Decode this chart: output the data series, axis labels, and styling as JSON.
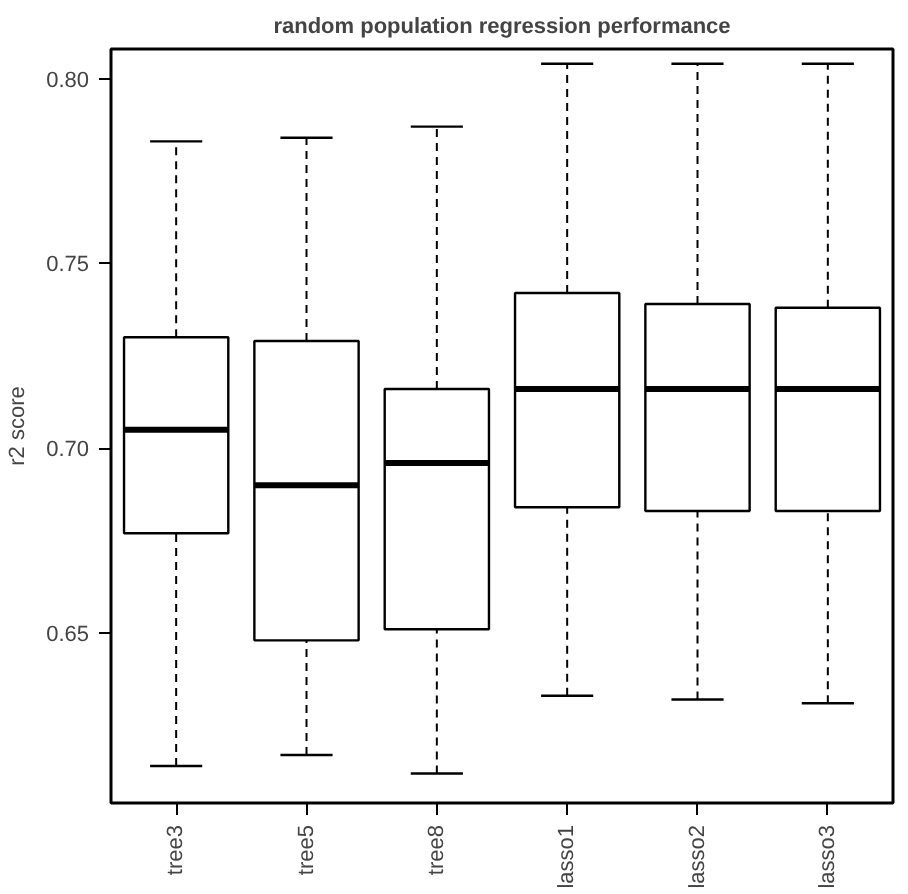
{
  "chart_data": {
    "type": "box",
    "title": "random population regression performance",
    "ylabel": "r2 score",
    "categories": [
      "tree3",
      "tree5",
      "tree8",
      "lasso1",
      "lasso2",
      "lasso3"
    ],
    "boxes": [
      {
        "low": 0.614,
        "q1": 0.677,
        "median": 0.705,
        "q3": 0.73,
        "high": 0.783
      },
      {
        "low": 0.617,
        "q1": 0.648,
        "median": 0.69,
        "q3": 0.729,
        "high": 0.784
      },
      {
        "low": 0.612,
        "q1": 0.651,
        "median": 0.696,
        "q3": 0.716,
        "high": 0.787
      },
      {
        "low": 0.633,
        "q1": 0.684,
        "median": 0.716,
        "q3": 0.742,
        "high": 0.804
      },
      {
        "low": 0.632,
        "q1": 0.683,
        "median": 0.716,
        "q3": 0.739,
        "high": 0.804
      },
      {
        "low": 0.631,
        "q1": 0.683,
        "median": 0.716,
        "q3": 0.738,
        "high": 0.804
      }
    ],
    "color": "#ffffff",
    "ylim": [
      0.604,
      0.808
    ],
    "yticks": [
      {
        "value": 0.65,
        "label": "0.65"
      },
      {
        "value": 0.7,
        "label": "0.70"
      },
      {
        "value": 0.75,
        "label": "0.75"
      },
      {
        "value": 0.8,
        "label": "0.80"
      }
    ],
    "grid": false
  }
}
